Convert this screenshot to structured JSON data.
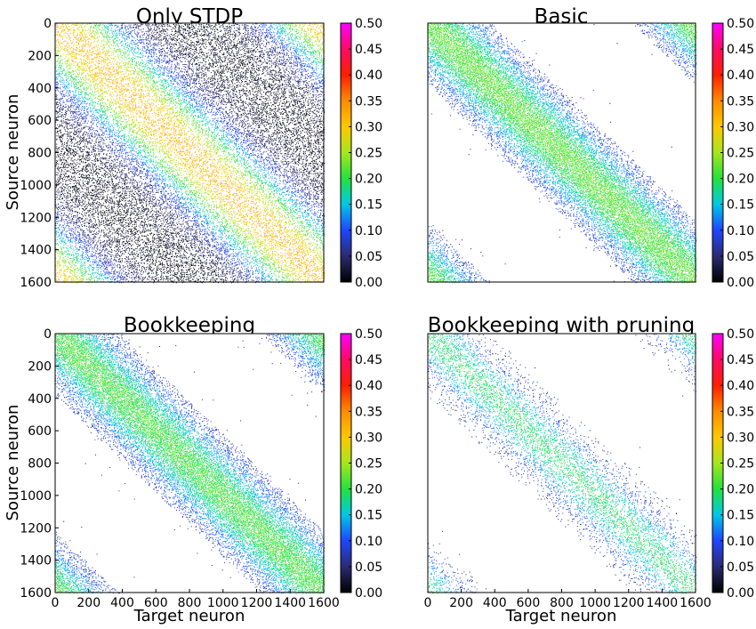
{
  "figure": {
    "xlabel": "Target neuron",
    "ylabel": "Source neuron"
  },
  "colorscale": {
    "stops": [
      {
        "v": 0.0,
        "c": "#000000"
      },
      {
        "v": 0.05,
        "c": "#2b2b72"
      },
      {
        "v": 0.1,
        "c": "#1e46ff"
      },
      {
        "v": 0.15,
        "c": "#00c8e6"
      },
      {
        "v": 0.2,
        "c": "#23e23c"
      },
      {
        "v": 0.25,
        "c": "#a6e61e"
      },
      {
        "v": 0.3,
        "c": "#ffc800"
      },
      {
        "v": 0.35,
        "c": "#ff8c00"
      },
      {
        "v": 0.4,
        "c": "#ff1e00"
      },
      {
        "v": 0.45,
        "c": "#ff0a64"
      },
      {
        "v": 0.5,
        "c": "#ff00ff"
      }
    ]
  },
  "chart_data": [
    {
      "type": "heatmap",
      "title": "Only STDP",
      "xlabel": "",
      "ylabel": "Source neuron",
      "xlim": [
        0,
        1600
      ],
      "ylim": [
        0,
        1600
      ],
      "x_ticks": [],
      "y_ticks": [
        "0",
        "200",
        "400",
        "600",
        "800",
        "1000",
        "1200",
        "1400",
        "1600"
      ],
      "colorbar": {
        "range": [
          0.0,
          0.5
        ],
        "ticks": [
          "0.00",
          "0.05",
          "0.10",
          "0.15",
          "0.20",
          "0.25",
          "0.30",
          "0.35",
          "0.40",
          "0.45",
          "0.50"
        ]
      },
      "pattern": "dense random connectivity; diagonal band of higher weights (~0.20-0.35) with lower weights elsewhere",
      "band_center_weight": 0.32
    },
    {
      "type": "heatmap",
      "title": "Basic",
      "xlabel": "",
      "ylabel": "",
      "xlim": [
        0,
        1600
      ],
      "ylim": [
        0,
        1600
      ],
      "x_ticks": [],
      "y_ticks": [],
      "colorbar": {
        "range": [
          0.0,
          0.5
        ],
        "ticks": [
          "0.00",
          "0.05",
          "0.10",
          "0.15",
          "0.20",
          "0.25",
          "0.30",
          "0.35",
          "0.40",
          "0.45",
          "0.50"
        ]
      },
      "pattern": "sparse diagonal band with weights ~0.05-0.25; empty off-band",
      "band_center_weight": 0.22
    },
    {
      "type": "heatmap",
      "title": "Bookkeeping",
      "xlabel": "Target neuron",
      "ylabel": "Source neuron",
      "xlim": [
        0,
        1600
      ],
      "ylim": [
        0,
        1600
      ],
      "x_ticks": [
        "0",
        "200",
        "400",
        "600",
        "800",
        "1000",
        "1200",
        "1400",
        "1600"
      ],
      "y_ticks": [
        "0",
        "200",
        "400",
        "600",
        "800",
        "1000",
        "1200",
        "1400",
        "1600"
      ],
      "colorbar": {
        "range": [
          0.0,
          0.5
        ],
        "ticks": [
          "0.00",
          "0.05",
          "0.10",
          "0.15",
          "0.20",
          "0.25",
          "0.30",
          "0.35",
          "0.40",
          "0.45",
          "0.50"
        ]
      },
      "pattern": "sparse diagonal band with weights ~0.05-0.22; empty off-band",
      "band_center_weight": 0.21
    },
    {
      "type": "heatmap",
      "title": "Bookkeeping with pruning",
      "xlabel": "Target neuron",
      "ylabel": "",
      "xlim": [
        0,
        1600
      ],
      "ylim": [
        0,
        1600
      ],
      "x_ticks": [
        "0",
        "200",
        "400",
        "600",
        "800",
        "1000",
        "1200",
        "1400",
        "1600"
      ],
      "y_ticks": [],
      "colorbar": {
        "range": [
          0.0,
          0.5
        ],
        "ticks": [
          "0.00",
          "0.05",
          "0.10",
          "0.15",
          "0.20",
          "0.25",
          "0.30",
          "0.35",
          "0.40",
          "0.45",
          "0.50"
        ]
      },
      "pattern": "very sparse diagonal band with weights ~0.12-0.22",
      "band_center_weight": 0.19
    }
  ]
}
